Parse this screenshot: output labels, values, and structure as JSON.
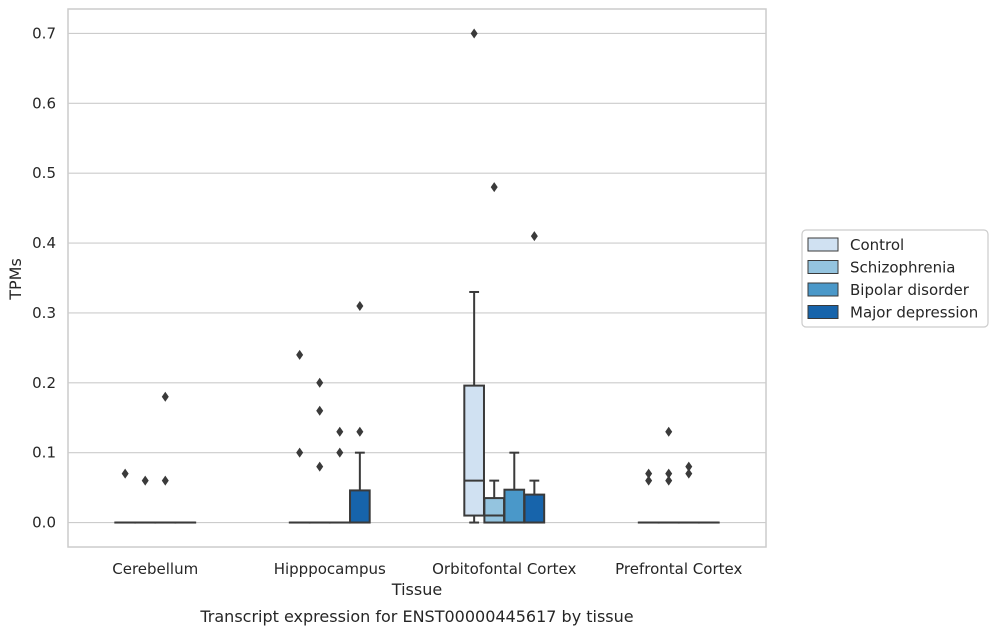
{
  "caption": "Transcript expression for ENST00000445617 by tissue",
  "chart_data": {
    "type": "box",
    "title": "",
    "xlabel": "Tissue",
    "ylabel": "TPMs",
    "ylim": [
      -0.035,
      0.735
    ],
    "yticks": [
      0.0,
      0.1,
      0.2,
      0.3,
      0.4,
      0.5,
      0.6,
      0.7
    ],
    "ytick_labels": [
      "0.0",
      "0.1",
      "0.2",
      "0.3",
      "0.4",
      "0.5",
      "0.6",
      "0.7"
    ],
    "categories": [
      "Cerebellum",
      "Hipppocampus",
      "Orbitofontal Cortex",
      "Prefrontal Cortex"
    ],
    "grid": true,
    "legend_position": "right",
    "series": [
      {
        "name": "Control",
        "color": "#d0e1f2",
        "boxes": [
          {
            "q1": 0.0,
            "median": 0.0,
            "q3": 0.0,
            "whisker_low": 0.0,
            "whisker_high": 0.0,
            "outliers": [
              0.07
            ]
          },
          {
            "q1": 0.0,
            "median": 0.0,
            "q3": 0.0,
            "whisker_low": 0.0,
            "whisker_high": 0.0,
            "outliers": [
              0.24,
              0.1
            ]
          },
          {
            "q1": 0.01,
            "median": 0.06,
            "q3": 0.196,
            "whisker_low": 0.0,
            "whisker_high": 0.33,
            "outliers": [
              0.7
            ]
          },
          {
            "q1": 0.0,
            "median": 0.0,
            "q3": 0.0,
            "whisker_low": 0.0,
            "whisker_high": 0.0,
            "outliers": [
              0.07,
              0.06
            ]
          }
        ]
      },
      {
        "name": "Schizophrenia",
        "color": "#94c4df",
        "boxes": [
          {
            "q1": 0.0,
            "median": 0.0,
            "q3": 0.0,
            "whisker_low": 0.0,
            "whisker_high": 0.0,
            "outliers": [
              0.06
            ]
          },
          {
            "q1": 0.0,
            "median": 0.0,
            "q3": 0.0,
            "whisker_low": 0.0,
            "whisker_high": 0.0,
            "outliers": [
              0.2,
              0.16,
              0.08
            ]
          },
          {
            "q1": 0.0,
            "median": 0.01,
            "q3": 0.035,
            "whisker_low": 0.0,
            "whisker_high": 0.06,
            "outliers": [
              0.48
            ]
          },
          {
            "q1": 0.0,
            "median": 0.0,
            "q3": 0.0,
            "whisker_low": 0.0,
            "whisker_high": 0.0,
            "outliers": [
              0.13,
              0.07,
              0.06
            ]
          }
        ]
      },
      {
        "name": "Bipolar disorder",
        "color": "#4a98c9",
        "boxes": [
          {
            "q1": 0.0,
            "median": 0.0,
            "q3": 0.0,
            "whisker_low": 0.0,
            "whisker_high": 0.0,
            "outliers": [
              0.18,
              0.06
            ]
          },
          {
            "q1": 0.0,
            "median": 0.0,
            "q3": 0.0,
            "whisker_low": 0.0,
            "whisker_high": 0.0,
            "outliers": [
              0.13,
              0.1
            ]
          },
          {
            "q1": 0.0,
            "median": 0.0,
            "q3": 0.047,
            "whisker_low": 0.0,
            "whisker_high": 0.1,
            "outliers": []
          },
          {
            "q1": 0.0,
            "median": 0.0,
            "q3": 0.0,
            "whisker_low": 0.0,
            "whisker_high": 0.0,
            "outliers": [
              0.08,
              0.07
            ]
          }
        ]
      },
      {
        "name": "Major depression",
        "color": "#1764ab",
        "boxes": [
          {
            "q1": 0.0,
            "median": 0.0,
            "q3": 0.0,
            "whisker_low": 0.0,
            "whisker_high": 0.0,
            "outliers": []
          },
          {
            "q1": 0.0,
            "median": 0.0,
            "q3": 0.046,
            "whisker_low": 0.0,
            "whisker_high": 0.1,
            "outliers": [
              0.31,
              0.13
            ]
          },
          {
            "q1": 0.0,
            "median": 0.0,
            "q3": 0.04,
            "whisker_low": 0.0,
            "whisker_high": 0.06,
            "outliers": [
              0.41
            ]
          },
          {
            "q1": 0.0,
            "median": 0.0,
            "q3": 0.0,
            "whisker_low": 0.0,
            "whisker_high": 0.0,
            "outliers": []
          }
        ]
      }
    ]
  }
}
